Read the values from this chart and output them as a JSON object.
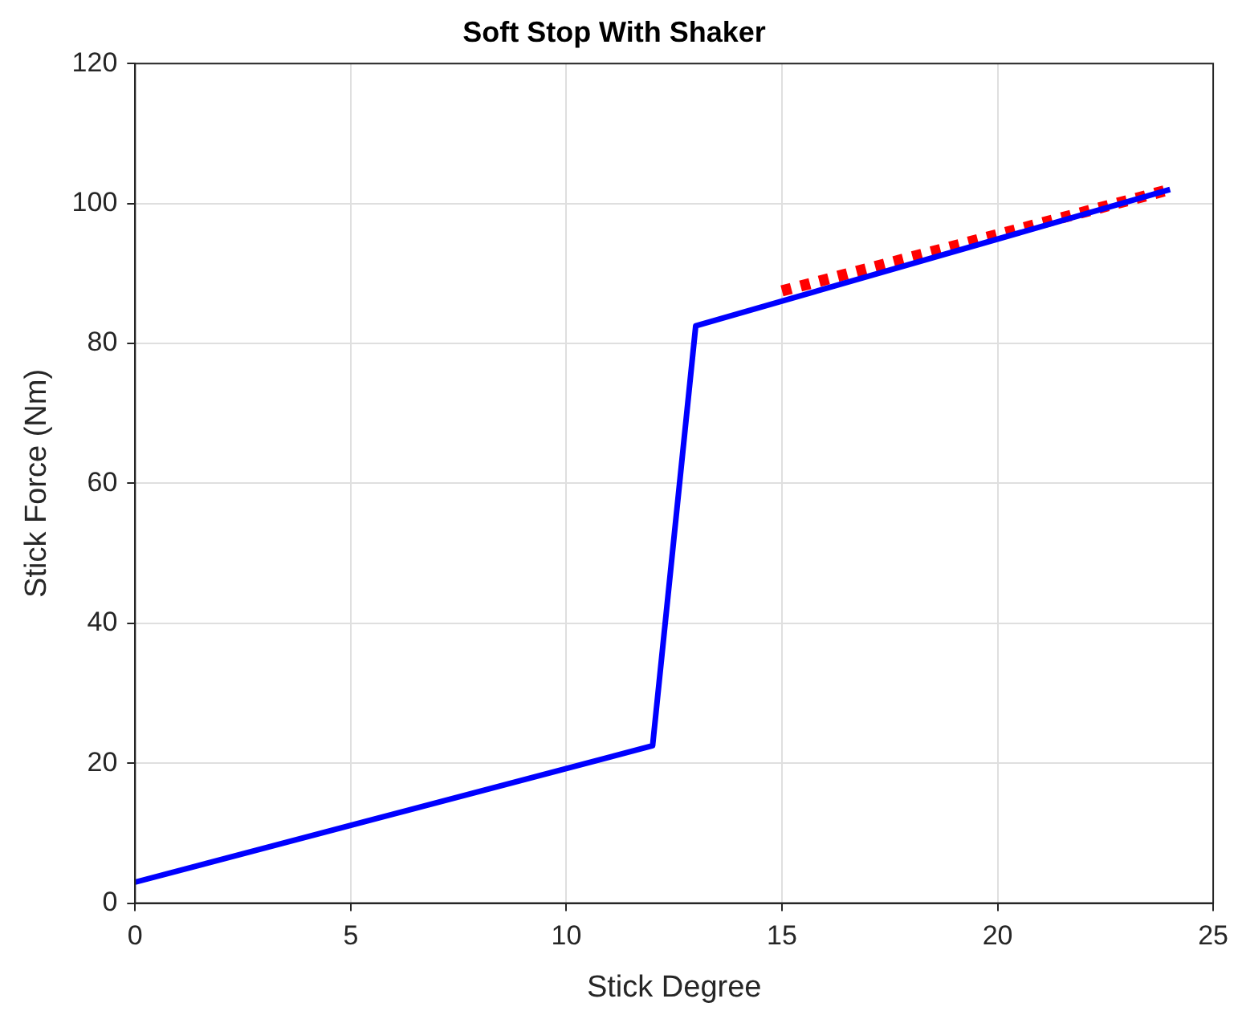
{
  "chart_data": {
    "type": "line",
    "title": "Soft Stop With Shaker",
    "xlabel": "Stick Degree",
    "ylabel": "Stick Force (Nm)",
    "xlim": [
      0,
      25
    ],
    "xticks": [
      0,
      5,
      10,
      15,
      20,
      25
    ],
    "ylim": [
      0,
      120
    ],
    "yticks": [
      0,
      20,
      40,
      60,
      80,
      100,
      120
    ],
    "grid": true,
    "legend": false,
    "marker": "none",
    "series": [
      {
        "color": "#0000ff",
        "x": [
          0,
          12,
          13,
          24
        ],
        "values": [
          3,
          22.5,
          82.5,
          102
        ],
        "line_style": "solid"
      },
      {
        "color": "#ff0000",
        "x": [
          15,
          24
        ],
        "values": [
          87.5,
          102
        ],
        "line_style": "dotted"
      }
    ]
  }
}
